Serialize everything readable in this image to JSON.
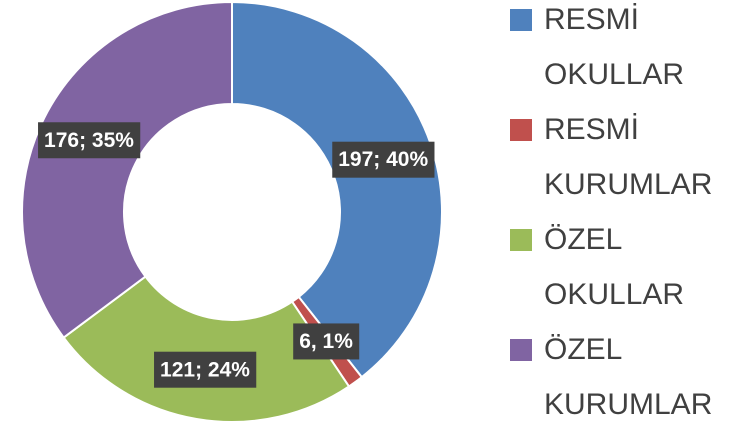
{
  "chart_data": {
    "type": "donut",
    "categories": [
      "RESMİ OKULLAR",
      "RESMİ KURUMLAR",
      "ÖZEL OKULLAR",
      "ÖZEL KURUMLAR"
    ],
    "values": [
      197,
      6,
      121,
      176
    ],
    "value_labels": [
      "197; 40%",
      "6, 1%",
      "121; 24%",
      "176; 35%"
    ],
    "colors": [
      "#4f81bd",
      "#c0504d",
      "#9bbb59",
      "#8064a2"
    ],
    "legend": "right"
  }
}
